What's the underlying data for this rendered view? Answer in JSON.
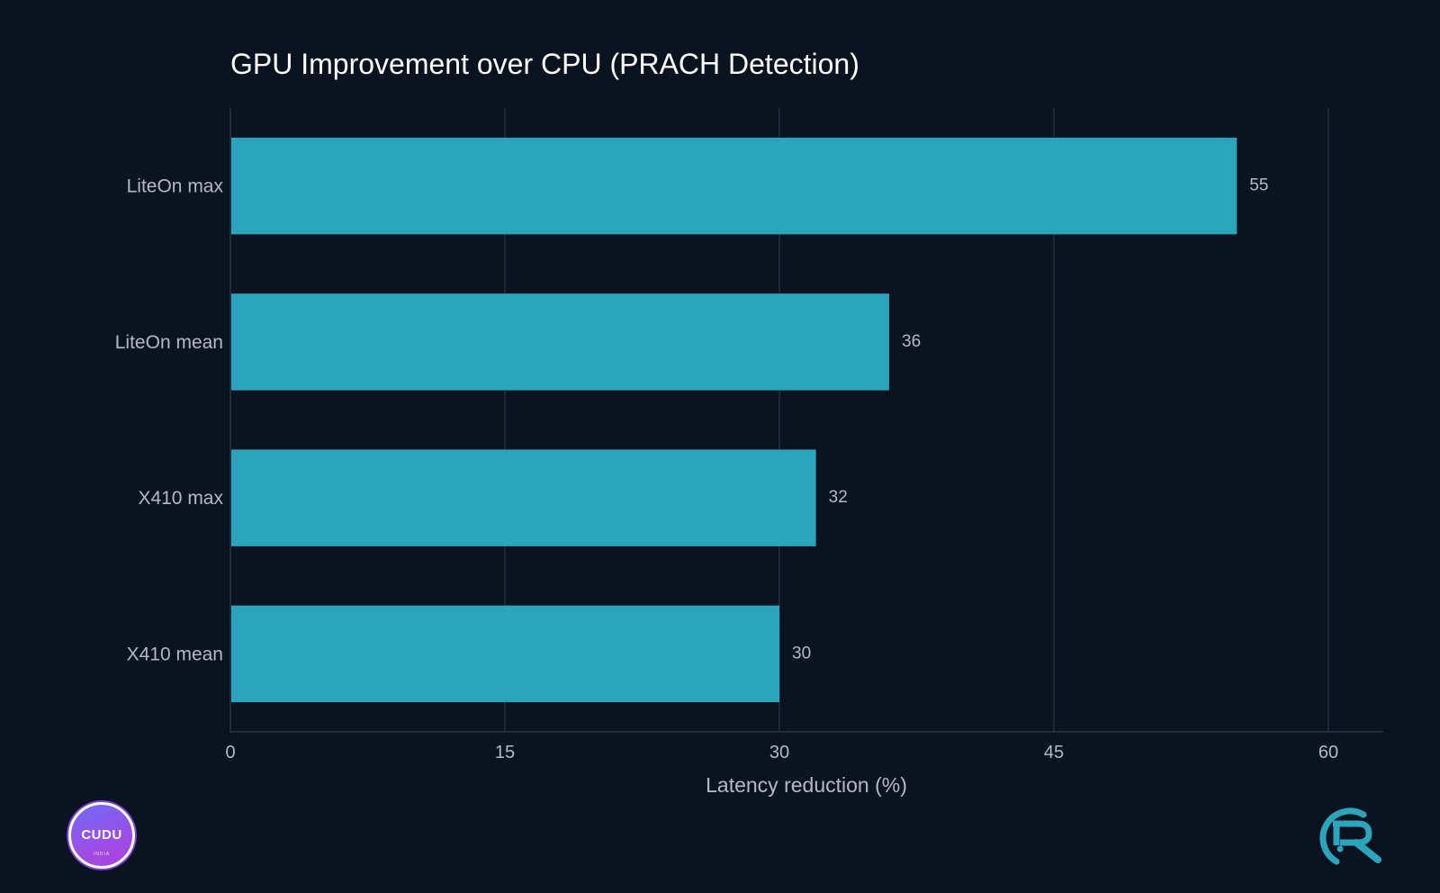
{
  "chart_data": {
    "type": "bar",
    "orientation": "horizontal",
    "title": "GPU Improvement over CPU (PRACH Detection)",
    "xlabel": "Latency reduction (%)",
    "ylabel": "",
    "categories": [
      "LiteOn max",
      "LiteOn mean",
      "X410 max",
      "X410 mean"
    ],
    "values": [
      55,
      36,
      32,
      30
    ],
    "value_labels": [
      "55",
      "36",
      "32",
      "30"
    ],
    "xlim": [
      0,
      63
    ],
    "xticks": [
      0,
      15,
      30,
      45,
      60
    ],
    "xtick_labels": [
      "0",
      "15",
      "30",
      "45",
      "60"
    ],
    "grid": "vertical",
    "legend": "none"
  },
  "colors": {
    "background": "#0c1320",
    "bar": "#2ba5bc",
    "grid": "#223040",
    "axis": "#2a3646",
    "text": "#b3bac4",
    "title": "#ffffff"
  },
  "logos": {
    "left": {
      "name": "cudu-logo",
      "text": "CUDU",
      "subtext": "INDIA"
    },
    "right": {
      "name": "r-logo"
    }
  }
}
